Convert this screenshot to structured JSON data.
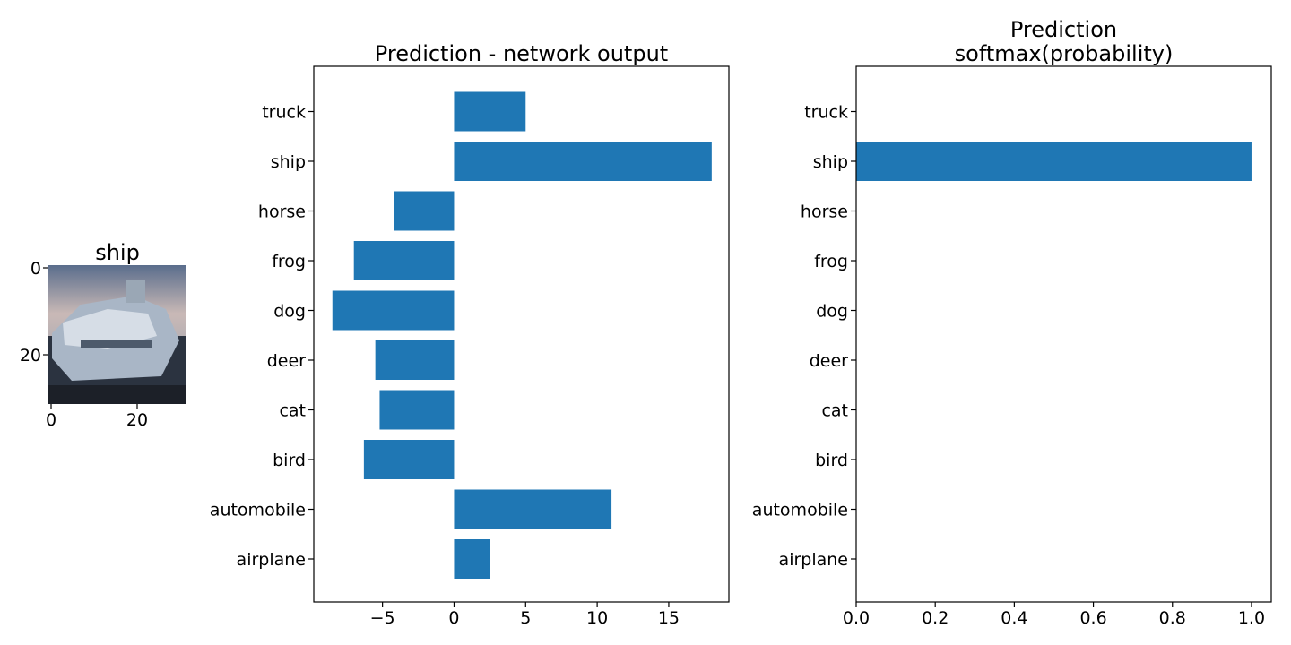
{
  "colors": {
    "bar": "#1f77b4",
    "axis": "#000000"
  },
  "image_panel": {
    "title": "ship",
    "xticks": [
      "0",
      "20"
    ],
    "yticks": [
      "0",
      "20"
    ]
  },
  "chart_data": [
    {
      "type": "bar",
      "orientation": "horizontal",
      "title": "Prediction - network output",
      "categories": [
        "airplane",
        "automobile",
        "bird",
        "cat",
        "deer",
        "dog",
        "frog",
        "horse",
        "ship",
        "truck"
      ],
      "values": [
        2.5,
        11.0,
        -6.3,
        -5.2,
        -5.5,
        -8.5,
        -7.0,
        -4.2,
        18.0,
        5.0
      ],
      "xlim": [
        -9.8,
        19.2
      ],
      "xticks": [
        -5,
        0,
        5,
        10,
        15
      ],
      "xtick_labels": [
        "−5",
        "0",
        "5",
        "10",
        "15"
      ],
      "grid": false
    },
    {
      "type": "bar",
      "orientation": "horizontal",
      "title": "Prediction\nsoftmax(probability)",
      "title_lines": [
        "Prediction",
        "softmax(probability)"
      ],
      "categories": [
        "airplane",
        "automobile",
        "bird",
        "cat",
        "deer",
        "dog",
        "frog",
        "horse",
        "ship",
        "truck"
      ],
      "values": [
        0.0,
        0.0,
        0.0,
        0.0,
        0.0,
        0.0,
        0.0,
        0.0,
        1.0,
        0.0
      ],
      "xlim": [
        0.0,
        1.05
      ],
      "xticks": [
        0.0,
        0.2,
        0.4,
        0.6,
        0.8,
        1.0
      ],
      "xtick_labels": [
        "0.0",
        "0.2",
        "0.4",
        "0.6",
        "0.8",
        "1.0"
      ],
      "grid": false
    }
  ]
}
